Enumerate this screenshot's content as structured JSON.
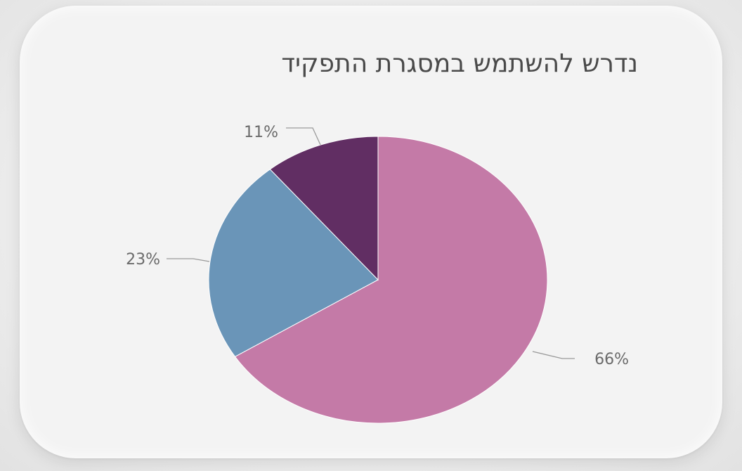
{
  "chart_data": {
    "type": "pie",
    "title": "נדרש להשתמש במסגרת התפקיד",
    "slices": [
      {
        "label": "66%",
        "value": 66,
        "color": "#c47aa7"
      },
      {
        "label": "23%",
        "value": 23,
        "color": "#6a95b8"
      },
      {
        "label": "11%",
        "value": 11,
        "color": "#612e63"
      }
    ],
    "start_angle_deg": 0,
    "direction": "clockwise",
    "legend": "none"
  }
}
